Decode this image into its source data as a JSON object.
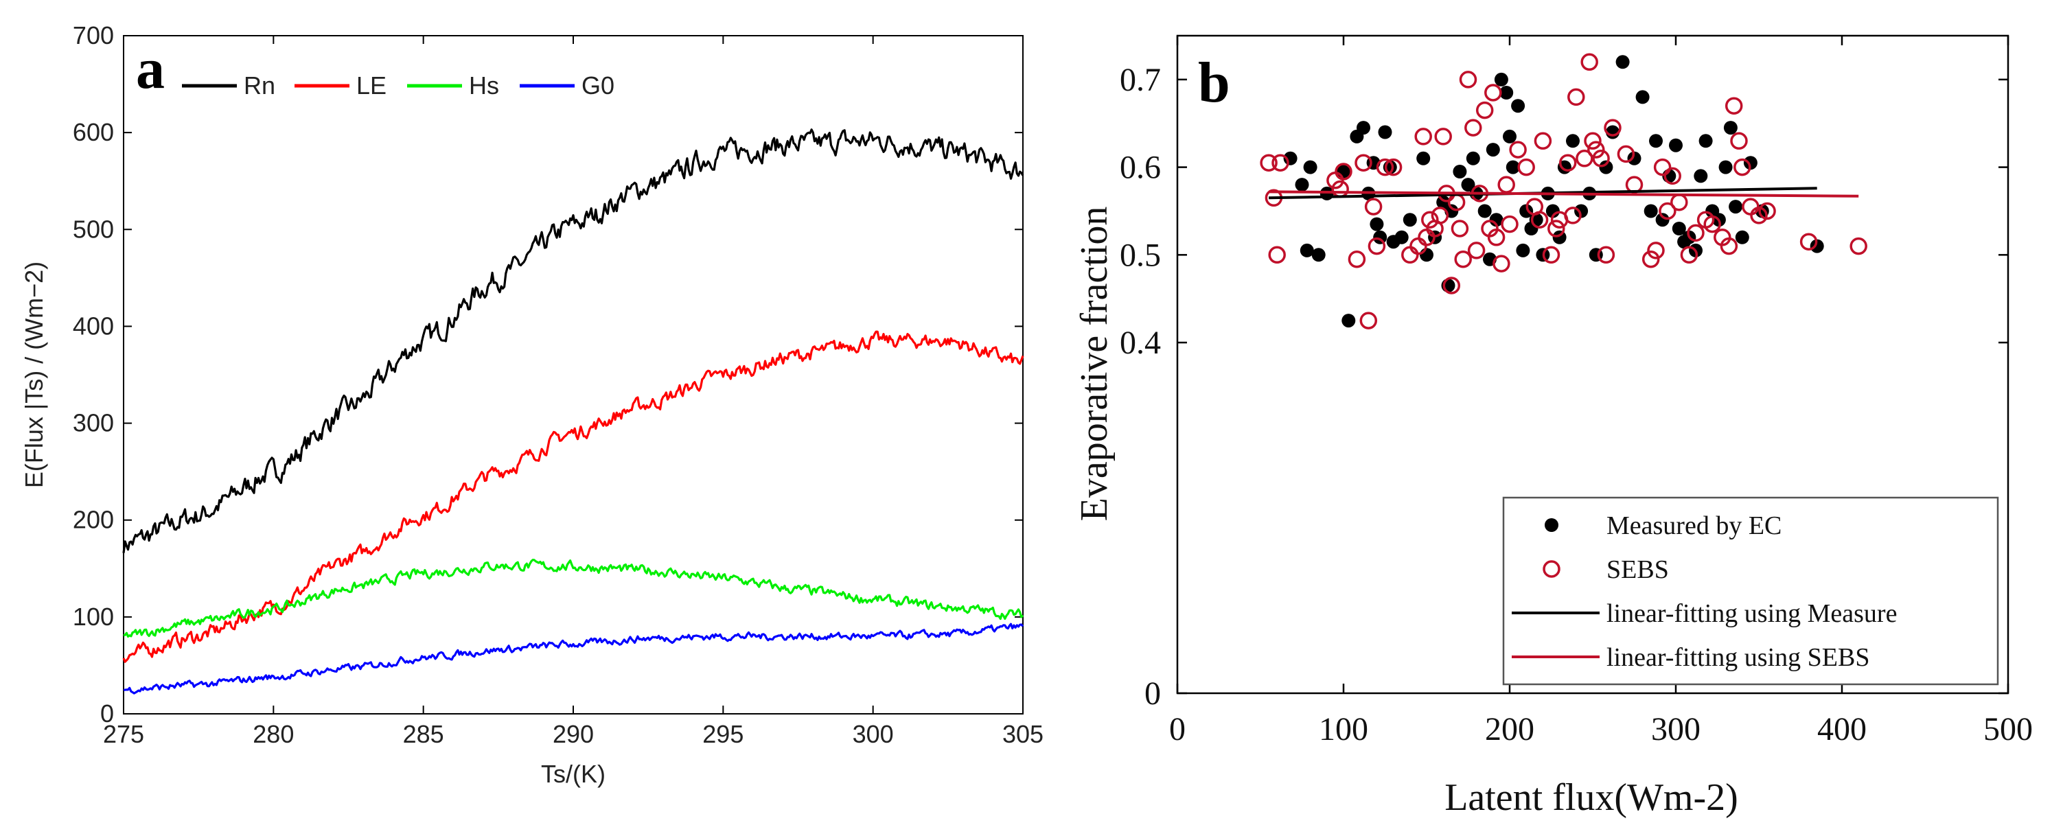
{
  "chart_data": [
    {
      "type": "line",
      "panel": "a",
      "title": "",
      "xlabel": "Ts/(K)",
      "ylabel": "E(Flux |Ts) / (Wm−2)",
      "xlim": [
        275,
        305
      ],
      "ylim": [
        0,
        700
      ],
      "xticks": [
        "275",
        "280",
        "285",
        "290",
        "295",
        "300",
        "305"
      ],
      "yticks": [
        "0",
        "100",
        "200",
        "300",
        "400",
        "500",
        "600",
        "700"
      ],
      "x": [
        275,
        277.5,
        280,
        282.5,
        285,
        287.5,
        290,
        292.5,
        295,
        297.5,
        300,
        302.5,
        305
      ],
      "series": [
        {
          "name": "Rn",
          "color": "#000000",
          "values": [
            175,
            205,
            250,
            315,
            385,
            450,
            505,
            545,
            580,
            588,
            592,
            582,
            560
          ]
        },
        {
          "name": "LE",
          "color": "#ff0000",
          "values": [
            60,
            80,
            110,
            160,
            205,
            250,
            290,
            320,
            350,
            370,
            385,
            385,
            362
          ]
        },
        {
          "name": "Hs",
          "color": "#00ee00",
          "values": [
            80,
            95,
            108,
            130,
            145,
            153,
            152,
            148,
            140,
            128,
            118,
            110,
            102
          ]
        },
        {
          "name": "G0",
          "color": "#0000ff",
          "values": [
            25,
            30,
            38,
            47,
            58,
            66,
            72,
            78,
            80,
            80,
            80,
            82,
            90
          ]
        }
      ]
    },
    {
      "type": "scatter",
      "panel": "b",
      "title": "",
      "xlabel": "Latent flux(Wm-2)",
      "ylabel": "Evaporative fraction",
      "xlim": [
        0,
        500
      ],
      "ylim": [
        0,
        0.75
      ],
      "xticks": [
        "0",
        "100",
        "200",
        "300",
        "400",
        "500"
      ],
      "yticks": [
        "0",
        "0.4",
        "0.5",
        "0.6",
        "0.7"
      ],
      "series": [
        {
          "name": "Measured by EC",
          "marker": "filled-circle",
          "color": "#000000",
          "points": [
            [
              68,
              0.61
            ],
            [
              75,
              0.58
            ],
            [
              80,
              0.6
            ],
            [
              85,
              0.5
            ],
            [
              78,
              0.505
            ],
            [
              90,
              0.57
            ],
            [
              100,
              0.595
            ],
            [
              103,
              0.425
            ],
            [
              108,
              0.635
            ],
            [
              112,
              0.645
            ],
            [
              115,
              0.57
            ],
            [
              118,
              0.605
            ],
            [
              120,
              0.535
            ],
            [
              122,
              0.52
            ],
            [
              125,
              0.64
            ],
            [
              128,
              0.6
            ],
            [
              130,
              0.515
            ],
            [
              135,
              0.52
            ],
            [
              140,
              0.54
            ],
            [
              148,
              0.61
            ],
            [
              150,
              0.5
            ],
            [
              155,
              0.52
            ],
            [
              160,
              0.56
            ],
            [
              163,
              0.465
            ],
            [
              165,
              0.55
            ],
            [
              170,
              0.595
            ],
            [
              175,
              0.58
            ],
            [
              178,
              0.61
            ],
            [
              180,
              0.57
            ],
            [
              185,
              0.55
            ],
            [
              188,
              0.495
            ],
            [
              190,
              0.62
            ],
            [
              192,
              0.54
            ],
            [
              195,
              0.7
            ],
            [
              198,
              0.685
            ],
            [
              200,
              0.635
            ],
            [
              202,
              0.6
            ],
            [
              205,
              0.67
            ],
            [
              208,
              0.505
            ],
            [
              210,
              0.55
            ],
            [
              213,
              0.53
            ],
            [
              216,
              0.54
            ],
            [
              220,
              0.5
            ],
            [
              223,
              0.57
            ],
            [
              226,
              0.55
            ],
            [
              230,
              0.52
            ],
            [
              233,
              0.6
            ],
            [
              238,
              0.63
            ],
            [
              243,
              0.55
            ],
            [
              248,
              0.57
            ],
            [
              252,
              0.5
            ],
            [
              258,
              0.6
            ],
            [
              262,
              0.64
            ],
            [
              268,
              0.72
            ],
            [
              275,
              0.61
            ],
            [
              280,
              0.68
            ],
            [
              285,
              0.55
            ],
            [
              288,
              0.63
            ],
            [
              292,
              0.54
            ],
            [
              296,
              0.59
            ],
            [
              300,
              0.625
            ],
            [
              302,
              0.53
            ],
            [
              305,
              0.515
            ],
            [
              308,
              0.52
            ],
            [
              312,
              0.505
            ],
            [
              315,
              0.59
            ],
            [
              318,
              0.63
            ],
            [
              322,
              0.55
            ],
            [
              326,
              0.54
            ],
            [
              330,
              0.6
            ],
            [
              333,
              0.645
            ],
            [
              336,
              0.555
            ],
            [
              340,
              0.52
            ],
            [
              345,
              0.605
            ],
            [
              352,
              0.55
            ],
            [
              385,
              0.51
            ]
          ]
        },
        {
          "name": "SEBS",
          "marker": "open-circle",
          "color": "#c0102a",
          "points": [
            [
              55,
              0.605
            ],
            [
              58,
              0.565
            ],
            [
              60,
              0.5
            ],
            [
              62,
              0.605
            ],
            [
              95,
              0.585
            ],
            [
              98,
              0.575
            ],
            [
              100,
              0.595
            ],
            [
              108,
              0.495
            ],
            [
              112,
              0.605
            ],
            [
              115,
              0.425
            ],
            [
              118,
              0.555
            ],
            [
              120,
              0.51
            ],
            [
              125,
              0.6
            ],
            [
              130,
              0.6
            ],
            [
              140,
              0.5
            ],
            [
              145,
              0.51
            ],
            [
              148,
              0.635
            ],
            [
              150,
              0.52
            ],
            [
              152,
              0.54
            ],
            [
              155,
              0.53
            ],
            [
              158,
              0.545
            ],
            [
              160,
              0.635
            ],
            [
              162,
              0.57
            ],
            [
              165,
              0.465
            ],
            [
              168,
              0.56
            ],
            [
              170,
              0.53
            ],
            [
              172,
              0.495
            ],
            [
              175,
              0.7
            ],
            [
              178,
              0.645
            ],
            [
              180,
              0.505
            ],
            [
              182,
              0.57
            ],
            [
              185,
              0.665
            ],
            [
              188,
              0.53
            ],
            [
              190,
              0.685
            ],
            [
              192,
              0.52
            ],
            [
              195,
              0.49
            ],
            [
              198,
              0.58
            ],
            [
              200,
              0.535
            ],
            [
              205,
              0.62
            ],
            [
              210,
              0.6
            ],
            [
              215,
              0.555
            ],
            [
              218,
              0.54
            ],
            [
              220,
              0.63
            ],
            [
              225,
              0.5
            ],
            [
              228,
              0.53
            ],
            [
              230,
              0.54
            ],
            [
              235,
              0.605
            ],
            [
              238,
              0.545
            ],
            [
              240,
              0.68
            ],
            [
              245,
              0.61
            ],
            [
              248,
              0.72
            ],
            [
              250,
              0.63
            ],
            [
              252,
              0.62
            ],
            [
              255,
              0.61
            ],
            [
              258,
              0.5
            ],
            [
              262,
              0.645
            ],
            [
              270,
              0.615
            ],
            [
              275,
              0.58
            ],
            [
              285,
              0.495
            ],
            [
              288,
              0.505
            ],
            [
              292,
              0.6
            ],
            [
              295,
              0.55
            ],
            [
              298,
              0.59
            ],
            [
              302,
              0.56
            ],
            [
              308,
              0.5
            ],
            [
              312,
              0.525
            ],
            [
              318,
              0.54
            ],
            [
              322,
              0.535
            ],
            [
              328,
              0.52
            ],
            [
              332,
              0.51
            ],
            [
              335,
              0.67
            ],
            [
              338,
              0.63
            ],
            [
              340,
              0.6
            ],
            [
              345,
              0.555
            ],
            [
              350,
              0.545
            ],
            [
              355,
              0.55
            ],
            [
              380,
              0.515
            ],
            [
              410,
              0.51
            ]
          ]
        },
        {
          "name": "linear-fitting using Measure",
          "type": "line",
          "color": "#000000",
          "points": [
            [
              55,
              0.565
            ],
            [
              385,
              0.576
            ]
          ]
        },
        {
          "name": "linear-fitting using SEBS",
          "type": "line",
          "color": "#c0102a",
          "points": [
            [
              55,
              0.572
            ],
            [
              410,
              0.567
            ]
          ]
        }
      ]
    }
  ]
}
